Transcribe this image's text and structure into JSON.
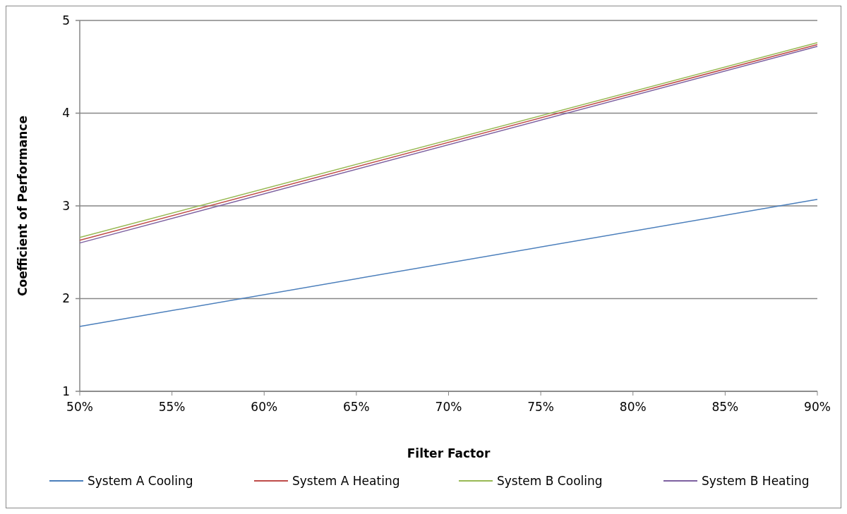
{
  "chart_data": {
    "type": "line",
    "xlabel": "Filter Factor",
    "ylabel": "Coefficient of Performance",
    "x": [
      50,
      90
    ],
    "series": [
      {
        "name": "System A Cooling",
        "color": "#4a7ebb",
        "values": [
          1.7,
          3.07
        ]
      },
      {
        "name": "System A Heating",
        "color": "#be4b48",
        "values": [
          2.63,
          4.74
        ]
      },
      {
        "name": "System B Cooling",
        "color": "#98b954",
        "values": [
          2.66,
          4.76
        ]
      },
      {
        "name": "System B Heating",
        "color": "#7d60a0",
        "values": [
          2.6,
          4.72
        ]
      }
    ],
    "xlim": [
      50,
      90
    ],
    "xticks": [
      {
        "value": 50,
        "label": "50%"
      },
      {
        "value": 55,
        "label": "55%"
      },
      {
        "value": 60,
        "label": "60%"
      },
      {
        "value": 65,
        "label": "65%"
      },
      {
        "value": 70,
        "label": "70%"
      },
      {
        "value": 75,
        "label": "75%"
      },
      {
        "value": 80,
        "label": "80%"
      },
      {
        "value": 85,
        "label": "85%"
      },
      {
        "value": 90,
        "label": "90%"
      }
    ],
    "ylim": [
      1,
      5
    ],
    "yticks": [
      1,
      2,
      3,
      4,
      5
    ],
    "grid": "y",
    "legend": "bottom",
    "marker": "none",
    "line_style": "solid"
  }
}
